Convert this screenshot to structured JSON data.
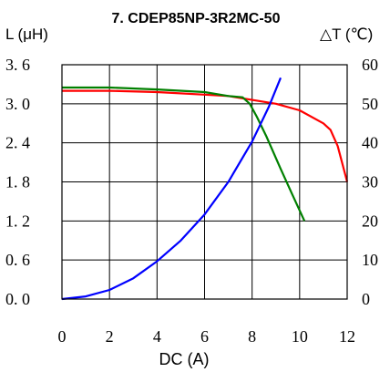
{
  "chart_data": {
    "type": "line",
    "title": "7. CDEP85NP-3R2MC-50",
    "xlabel": "DC (A)",
    "ylabel_left": "L (μH)",
    "ylabel_right": "△T (℃)",
    "xlim": [
      0,
      12
    ],
    "ylim_left": [
      0,
      3.6
    ],
    "ylim_right": [
      0,
      60
    ],
    "x_ticks": [
      "0",
      "2",
      "4",
      "6",
      "8",
      "10",
      "12"
    ],
    "y_left_ticks": [
      "0. 0",
      "0. 6",
      "1. 2",
      "1. 8",
      "2. 4",
      "3. 0",
      "3. 6"
    ],
    "y_right_ticks": [
      "0",
      "10",
      "20",
      "30",
      "40",
      "50",
      "60"
    ],
    "grid": true,
    "series": [
      {
        "color": "#ff0000",
        "axis": "left",
        "points": [
          [
            0,
            3.2
          ],
          [
            2,
            3.2
          ],
          [
            4,
            3.18
          ],
          [
            6,
            3.14
          ],
          [
            7,
            3.12
          ],
          [
            8,
            3.06
          ],
          [
            9,
            3.0
          ],
          [
            10,
            2.9
          ],
          [
            11,
            2.7
          ],
          [
            11.3,
            2.6
          ],
          [
            11.6,
            2.35
          ],
          [
            12,
            1.8
          ]
        ]
      },
      {
        "color": "#008000",
        "axis": "left",
        "points": [
          [
            0,
            3.25
          ],
          [
            2,
            3.25
          ],
          [
            4,
            3.22
          ],
          [
            6,
            3.18
          ],
          [
            7,
            3.12
          ],
          [
            7.6,
            3.1
          ],
          [
            7.9,
            3.0
          ],
          [
            8.2,
            2.8
          ],
          [
            8.6,
            2.5
          ],
          [
            9.2,
            2.0
          ],
          [
            9.7,
            1.6
          ],
          [
            10.2,
            1.2
          ]
        ]
      },
      {
        "color": "#0000ff",
        "axis": "left",
        "points": [
          [
            0,
            0.0
          ],
          [
            1,
            0.04
          ],
          [
            2,
            0.14
          ],
          [
            3,
            0.32
          ],
          [
            4,
            0.58
          ],
          [
            5,
            0.9
          ],
          [
            6,
            1.3
          ],
          [
            7,
            1.8
          ],
          [
            8,
            2.42
          ],
          [
            8.7,
            2.95
          ],
          [
            9.2,
            3.4
          ]
        ]
      }
    ]
  }
}
